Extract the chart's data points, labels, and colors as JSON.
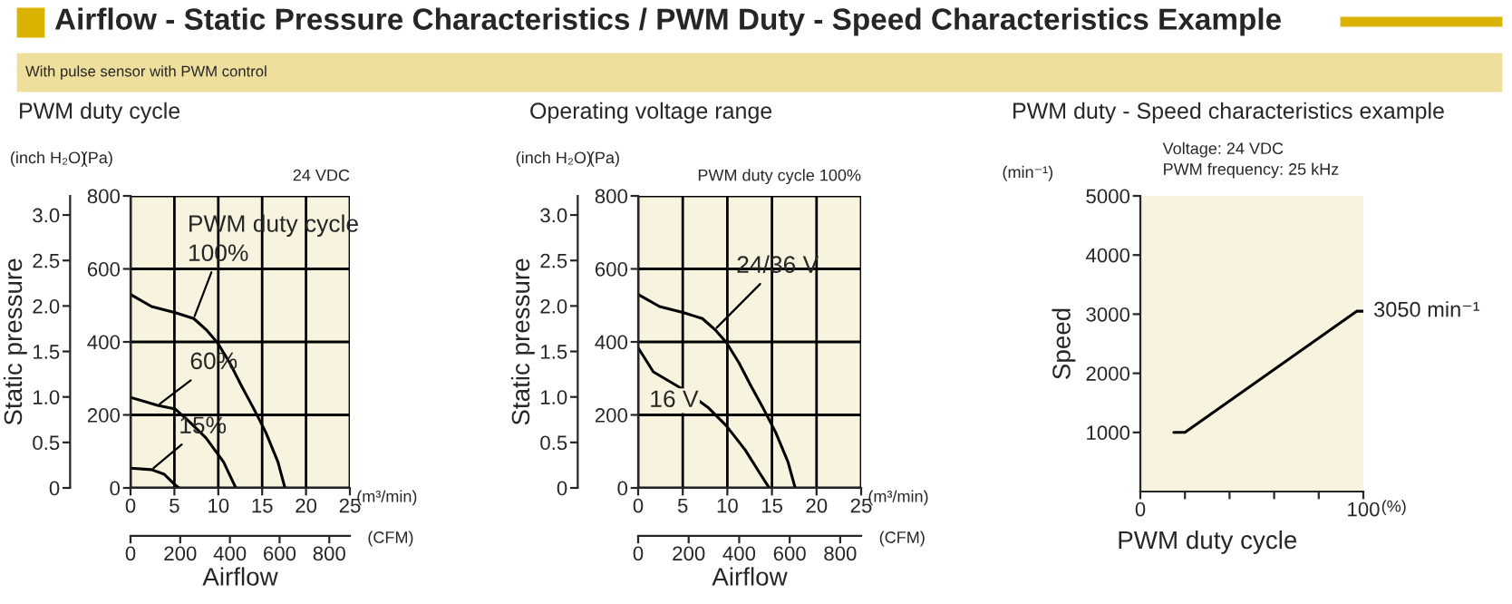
{
  "chart_data": [
    {
      "type": "line",
      "title": "PWM duty cycle",
      "xlabel": "Airflow",
      "y2label": "Static pressure",
      "legend_title": "PWM duty cycle",
      "annotations": [
        "Airflow - Static Pressure Characteristics / PWM Duty - Speed Characteristics Example",
        "With pulse sensor with PWM control",
        "(inch H₂O)",
        "(Pa)",
        "24 VDC",
        "(m³/min)",
        "(CFM)"
      ],
      "series": [
        {
          "name": "100%",
          "color": "#000000",
          "x": [
            0,
            2.4,
            5.1,
            7.2,
            8.6,
            9.9,
            11.3,
            12.7,
            14.0,
            15.4,
            16.8,
            17.6
          ],
          "values": [
            530,
            497,
            480,
            464,
            434,
            398,
            343,
            277,
            219,
            153,
            71,
            0
          ]
        },
        {
          "name": "60%",
          "color": "#000000",
          "x": [
            0,
            3.1,
            5.1,
            6.5,
            8.6,
            10.6,
            12.0
          ],
          "values": [
            248,
            226,
            216,
            186,
            137,
            71,
            0
          ]
        },
        {
          "name": "15%",
          "color": "#000000",
          "x": [
            0,
            2.4,
            3.8,
            5.1,
            5.5
          ],
          "values": [
            54,
            50,
            38,
            8,
            0
          ]
        }
      ],
      "xlim": [
        0,
        25
      ],
      "xticks": [
        0,
        5,
        10,
        15,
        20,
        25
      ],
      "ylim": [
        0,
        800
      ],
      "yticks": [
        0,
        200,
        400,
        600,
        800
      ],
      "x2lim": [
        0,
        883
      ],
      "x2ticks": [
        0,
        200,
        400,
        600,
        800
      ],
      "y2lim": [
        0,
        3.21
      ],
      "y2ticks": [
        0,
        0.5,
        {
          "value": 1,
          "label": "1.0"
        },
        1.5,
        {
          "value": 2,
          "label": "2.0"
        },
        2.5,
        {
          "value": 3,
          "label": "3.0"
        }
      ],
      "grid": true,
      "legend": false,
      "marker": "none",
      "line_style": "solid"
    },
    {
      "type": "line",
      "title": "Operating voltage range",
      "xlabel": "Airflow",
      "y2label": "Static pressure",
      "annotations": [
        "(inch H₂O)",
        "(Pa)",
        "PWM duty cycle 100%",
        "(m³/min)",
        "(CFM)"
      ],
      "series": [
        {
          "name": "24/36 V",
          "color": "#000000",
          "x": [
            0,
            2.4,
            5.1,
            7.2,
            8.6,
            9.9,
            11.3,
            12.7,
            14.0,
            15.4,
            16.8,
            17.6
          ],
          "values": [
            530,
            497,
            480,
            464,
            434,
            398,
            343,
            277,
            219,
            153,
            71,
            0
          ]
        },
        {
          "name": "16 V",
          "color": "#000000",
          "x": [
            0,
            1.7,
            5.1,
            7.9,
            9.9,
            12.0,
            13.7,
            14.7
          ],
          "values": [
            384,
            318,
            269,
            219,
            170,
            104,
            38,
            0
          ]
        }
      ],
      "xlim": [
        0,
        25
      ],
      "xticks": [
        0,
        5,
        10,
        15,
        20,
        25
      ],
      "ylim": [
        0,
        800
      ],
      "yticks": [
        0,
        200,
        400,
        600,
        800
      ],
      "x2lim": [
        0,
        883
      ],
      "x2ticks": [
        0,
        200,
        400,
        600,
        800
      ],
      "y2lim": [
        0,
        3.21
      ],
      "y2ticks": [
        0,
        0.5,
        {
          "value": 1,
          "label": "1.0"
        },
        1.5,
        {
          "value": 2,
          "label": "2.0"
        },
        2.5,
        {
          "value": 3,
          "label": "3.0"
        }
      ],
      "grid": true,
      "legend": false,
      "marker": "none",
      "line_style": "solid"
    },
    {
      "type": "line",
      "title": "PWM duty - Speed characteristics example",
      "xlabel": "PWM duty cycle",
      "ylabel": "Speed",
      "annotations": [
        "(min⁻¹)",
        "Voltage: 24 VDC",
        "PWM frequency: 25 kHz",
        "(%)",
        {
          "text": "3050 min⁻¹",
          "x": 100,
          "y": 3050
        }
      ],
      "series": [
        {
          "color": "#000000",
          "x": [
            15,
            20,
            97,
            100
          ],
          "values": [
            1000,
            1000,
            3050,
            3050
          ]
        }
      ],
      "xlim": [
        0,
        100
      ],
      "xticks": [
        0,
        {
          "value": 20,
          "label": null
        },
        {
          "value": 40,
          "label": null
        },
        {
          "value": 60,
          "label": null
        },
        {
          "value": 80,
          "label": null
        },
        100
      ],
      "ylim": [
        0,
        5000
      ],
      "yticks": [
        1000,
        2000,
        3000,
        4000,
        5000
      ],
      "grid": false,
      "legend": false,
      "marker": "none",
      "line_style": "solid"
    }
  ]
}
